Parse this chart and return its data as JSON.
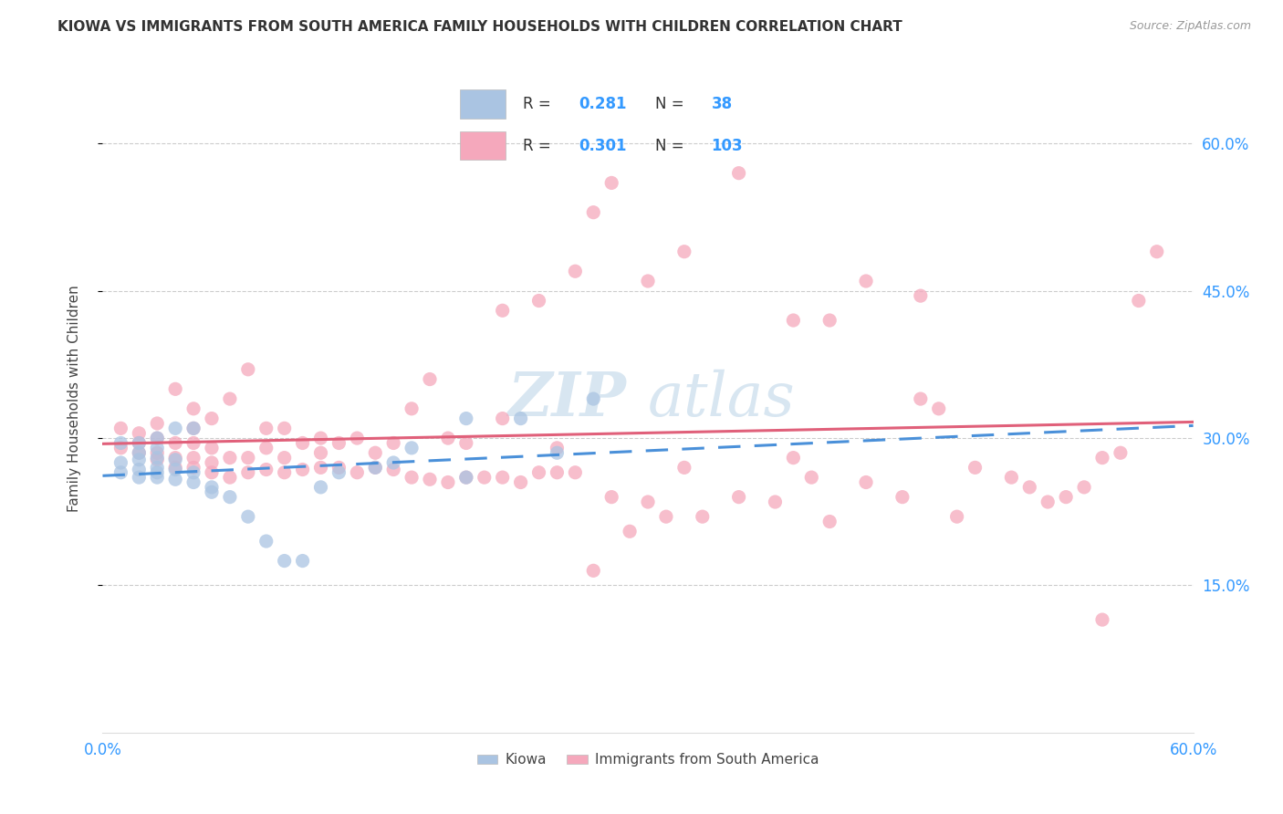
{
  "title": "KIOWA VS IMMIGRANTS FROM SOUTH AMERICA FAMILY HOUSEHOLDS WITH CHILDREN CORRELATION CHART",
  "source": "Source: ZipAtlas.com",
  "ylabel": "Family Households with Children",
  "xlim": [
    0.0,
    0.6
  ],
  "ylim": [
    0.0,
    0.68
  ],
  "xtick_labels": [
    "0.0%",
    "",
    "",
    "",
    "",
    "",
    "60.0%"
  ],
  "xtick_vals": [
    0.0,
    0.1,
    0.2,
    0.3,
    0.4,
    0.5,
    0.6
  ],
  "ytick_vals": [
    0.15,
    0.3,
    0.45,
    0.6
  ],
  "ytick_labels": [
    "15.0%",
    "30.0%",
    "45.0%",
    "60.0%"
  ],
  "kiowa_R": 0.281,
  "kiowa_N": 38,
  "immig_R": 0.301,
  "immig_N": 103,
  "kiowa_color": "#aac4e2",
  "immig_color": "#f5a8bc",
  "kiowa_line_color": "#4a90d9",
  "immig_line_color": "#e0607a",
  "watermark_zip": "ZIP",
  "watermark_atlas": "atlas",
  "background_color": "#ffffff",
  "kiowa_x": [
    0.01,
    0.01,
    0.01,
    0.02,
    0.02,
    0.02,
    0.02,
    0.02,
    0.03,
    0.03,
    0.03,
    0.03,
    0.03,
    0.03,
    0.04,
    0.04,
    0.04,
    0.04,
    0.05,
    0.05,
    0.05,
    0.06,
    0.06,
    0.07,
    0.08,
    0.09,
    0.1,
    0.11,
    0.12,
    0.13,
    0.15,
    0.16,
    0.17,
    0.2,
    0.2,
    0.23,
    0.25,
    0.27
  ],
  "kiowa_y": [
    0.265,
    0.275,
    0.295,
    0.26,
    0.268,
    0.278,
    0.285,
    0.295,
    0.26,
    0.265,
    0.27,
    0.28,
    0.29,
    0.3,
    0.258,
    0.268,
    0.278,
    0.31,
    0.255,
    0.265,
    0.31,
    0.245,
    0.25,
    0.24,
    0.22,
    0.195,
    0.175,
    0.175,
    0.25,
    0.265,
    0.27,
    0.275,
    0.29,
    0.26,
    0.32,
    0.32,
    0.285,
    0.34
  ],
  "immig_x": [
    0.01,
    0.01,
    0.02,
    0.02,
    0.02,
    0.03,
    0.03,
    0.03,
    0.03,
    0.04,
    0.04,
    0.04,
    0.04,
    0.05,
    0.05,
    0.05,
    0.05,
    0.05,
    0.06,
    0.06,
    0.06,
    0.06,
    0.07,
    0.07,
    0.07,
    0.08,
    0.08,
    0.08,
    0.09,
    0.09,
    0.09,
    0.1,
    0.1,
    0.1,
    0.11,
    0.11,
    0.12,
    0.12,
    0.12,
    0.13,
    0.13,
    0.14,
    0.14,
    0.15,
    0.15,
    0.16,
    0.16,
    0.17,
    0.17,
    0.18,
    0.18,
    0.19,
    0.19,
    0.2,
    0.2,
    0.21,
    0.22,
    0.22,
    0.23,
    0.24,
    0.25,
    0.25,
    0.26,
    0.27,
    0.28,
    0.29,
    0.3,
    0.31,
    0.32,
    0.33,
    0.35,
    0.37,
    0.38,
    0.39,
    0.4,
    0.42,
    0.44,
    0.45,
    0.46,
    0.47,
    0.48,
    0.5,
    0.51,
    0.52,
    0.53,
    0.54,
    0.55,
    0.56,
    0.57,
    0.58,
    0.22,
    0.24,
    0.26,
    0.27,
    0.28,
    0.3,
    0.32,
    0.35,
    0.38,
    0.4,
    0.42,
    0.45,
    0.55
  ],
  "immig_y": [
    0.29,
    0.31,
    0.285,
    0.295,
    0.305,
    0.278,
    0.285,
    0.3,
    0.315,
    0.27,
    0.28,
    0.295,
    0.35,
    0.27,
    0.28,
    0.295,
    0.31,
    0.33,
    0.265,
    0.275,
    0.29,
    0.32,
    0.26,
    0.28,
    0.34,
    0.265,
    0.28,
    0.37,
    0.268,
    0.29,
    0.31,
    0.265,
    0.28,
    0.31,
    0.268,
    0.295,
    0.27,
    0.285,
    0.3,
    0.27,
    0.295,
    0.265,
    0.3,
    0.27,
    0.285,
    0.268,
    0.295,
    0.26,
    0.33,
    0.258,
    0.36,
    0.255,
    0.3,
    0.26,
    0.295,
    0.26,
    0.26,
    0.32,
    0.255,
    0.265,
    0.265,
    0.29,
    0.265,
    0.165,
    0.24,
    0.205,
    0.235,
    0.22,
    0.27,
    0.22,
    0.24,
    0.235,
    0.28,
    0.26,
    0.215,
    0.255,
    0.24,
    0.34,
    0.33,
    0.22,
    0.27,
    0.26,
    0.25,
    0.235,
    0.24,
    0.25,
    0.28,
    0.285,
    0.44,
    0.49,
    0.43,
    0.44,
    0.47,
    0.53,
    0.56,
    0.46,
    0.49,
    0.57,
    0.42,
    0.42,
    0.46,
    0.445,
    0.115
  ]
}
